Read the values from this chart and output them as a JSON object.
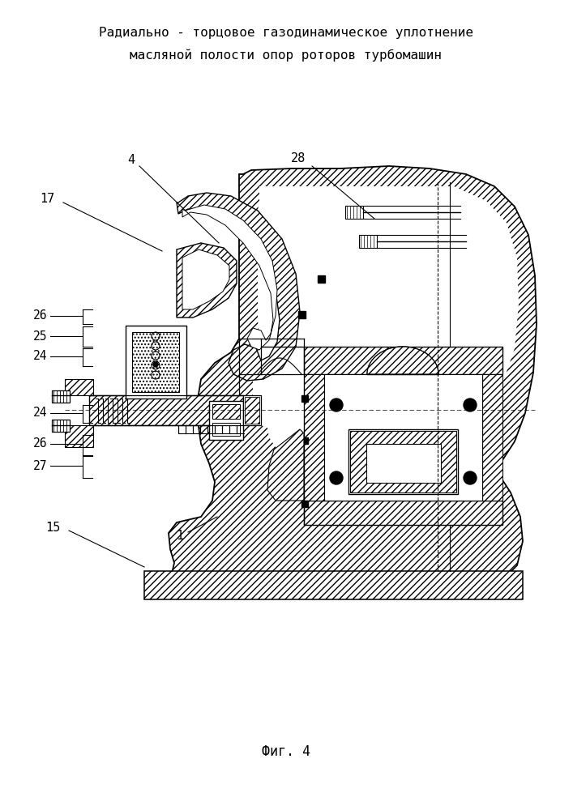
{
  "title_line1": "Радиально - торцовое газодинамическое уплотнение",
  "title_line2": "масляной полости опор роторов турбомашин",
  "caption": "Фиг. 4",
  "bg_color": "#ffffff",
  "line_color": "#000000"
}
